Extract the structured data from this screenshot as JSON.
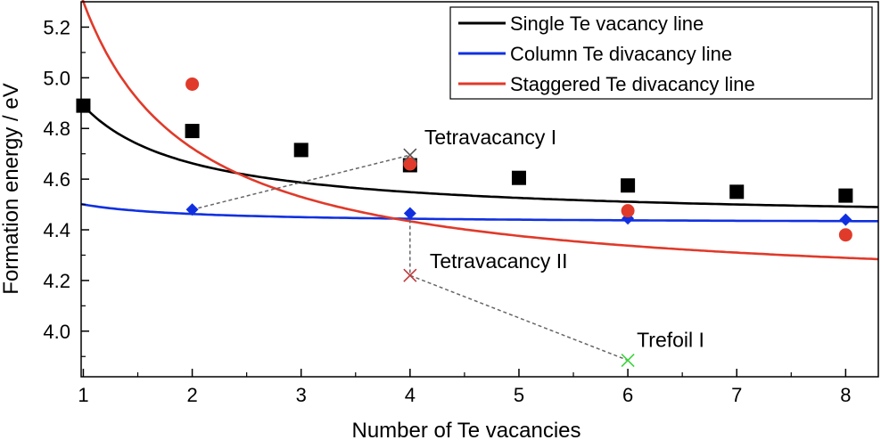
{
  "chart_data": {
    "type": "scatter",
    "xlabel": "Number of Te vacancies",
    "ylabel": "Formation energy / eV",
    "xlim": [
      0.98,
      8.3
    ],
    "ylim": [
      3.82,
      5.3
    ],
    "xticks": [
      1,
      2,
      3,
      4,
      5,
      6,
      7,
      8
    ],
    "yticks": [
      4.0,
      4.2,
      4.4,
      4.6,
      4.8,
      5.0,
      5.2
    ],
    "x_tick_labels": [
      "1",
      "2",
      "3",
      "4",
      "5",
      "6",
      "7",
      "8"
    ],
    "y_tick_labels": [
      "4.0",
      "4.2",
      "4.4",
      "4.6",
      "4.8",
      "5.0",
      "5.2"
    ],
    "legend_position": "top-right",
    "series": [
      {
        "name": "Single Te vacancy line",
        "color": "#000000",
        "marker": "square",
        "points": [
          [
            1,
            4.89
          ],
          [
            2,
            4.79
          ],
          [
            3,
            4.715
          ],
          [
            4,
            4.655
          ],
          [
            5,
            4.605
          ],
          [
            6,
            4.575
          ],
          [
            7,
            4.55
          ],
          [
            8,
            4.535
          ]
        ],
        "fit": {
          "a": 4.435,
          "b": 0.455
        }
      },
      {
        "name": "Column Te divacancy line",
        "color": "#1030e0",
        "marker": "diamond",
        "points": [
          [
            2,
            4.48
          ],
          [
            4,
            4.465
          ],
          [
            6,
            4.445
          ],
          [
            8,
            4.44
          ]
        ],
        "fit": {
          "a": 4.425,
          "b": 0.075
        }
      },
      {
        "name": "Staggered Te divacancy line",
        "color": "#e03a2a",
        "marker": "circle",
        "points": [
          [
            2,
            4.975
          ],
          [
            4,
            4.66
          ],
          [
            6,
            4.475
          ],
          [
            8,
            4.38
          ]
        ],
        "fit": {
          "a": 4.145,
          "b": 1.155
        }
      }
    ],
    "annotations": [
      {
        "label": "Tetravacancy I",
        "x": 4,
        "y": 4.695,
        "color": "#555555"
      },
      {
        "label": "Tetravacancy II",
        "x": 4,
        "y": 4.22,
        "color": "#c0393b"
      },
      {
        "label": "Trefoil I",
        "x": 6,
        "y": 3.885,
        "color": "#3ad43a"
      }
    ],
    "dashed_paths": [
      [
        [
          2,
          4.48
        ],
        [
          4,
          4.695
        ]
      ],
      [
        [
          4,
          4.465
        ],
        [
          4,
          4.22
        ],
        [
          6,
          3.885
        ]
      ]
    ]
  }
}
